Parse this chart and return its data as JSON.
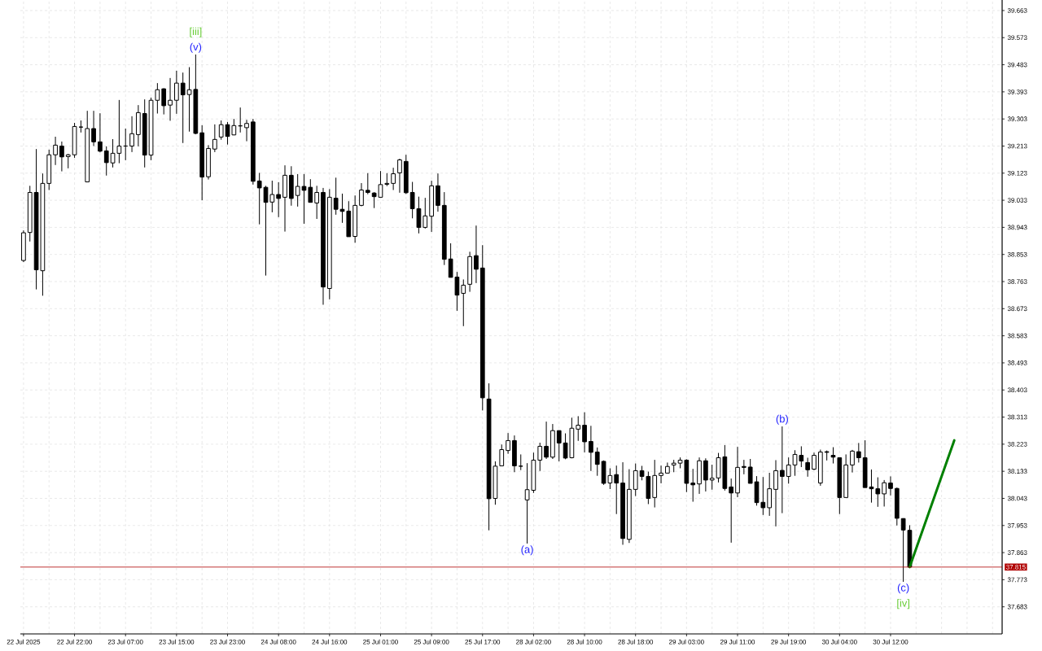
{
  "chart_data": {
    "type": "candlestick",
    "color": "#000000",
    "categories": [
      "22 Jul 2025",
      null,
      null,
      null,
      null,
      null,
      null,
      null,
      "22 Jul 22:00",
      null,
      null,
      null,
      null,
      null,
      null,
      null,
      "23 Jul 07:00",
      null,
      null,
      null,
      null,
      null,
      null,
      null,
      "23 Jul 15:00",
      null,
      null,
      null,
      null,
      null,
      null,
      null,
      "23 Jul 23:00",
      null,
      null,
      null,
      null,
      null,
      null,
      null,
      "24 Jul 08:00",
      null,
      null,
      null,
      null,
      null,
      null,
      null,
      "24 Jul 16:00",
      null,
      null,
      null,
      null,
      null,
      null,
      null,
      "25 Jul 01:00",
      null,
      null,
      null,
      null,
      null,
      null,
      null,
      "25 Jul 09:00",
      null,
      null,
      null,
      null,
      null,
      null,
      null,
      "25 Jul 17:00",
      null,
      null,
      null,
      null,
      null,
      null,
      null,
      "28 Jul 02:00",
      null,
      null,
      null,
      null,
      null,
      null,
      null,
      "28 Jul 10:00",
      null,
      null,
      null,
      null,
      null,
      null,
      null,
      "28 Jul 18:00",
      null,
      null,
      null,
      null,
      null,
      null,
      null,
      "29 Jul 03:00",
      null,
      null,
      null,
      null,
      null,
      null,
      null,
      "29 Jul 11:00",
      null,
      null,
      null,
      null,
      null,
      null,
      null,
      "29 Jul 19:00",
      null,
      null,
      null,
      null,
      null,
      null,
      null,
      "30 Jul 04:00",
      null,
      null,
      null,
      null,
      null,
      null,
      null,
      "30 Jul 12:00",
      null,
      null,
      null,
      null,
      null,
      null,
      null,
      null,
      null,
      null,
      null,
      null,
      null,
      null,
      null,
      null,
      null
    ],
    "ohlc": [
      [
        38.833,
        38.933,
        38.828,
        38.925
      ],
      [
        38.926,
        39.081,
        38.896,
        39.059
      ],
      [
        39.059,
        39.203,
        38.737,
        38.802
      ],
      [
        38.799,
        39.122,
        38.716,
        39.089
      ],
      [
        39.089,
        39.201,
        39.067,
        39.184
      ],
      [
        39.184,
        39.244,
        39.15,
        39.216
      ],
      [
        39.213,
        39.228,
        39.129,
        39.177
      ],
      [
        39.178,
        39.187,
        39.139,
        39.184
      ],
      [
        39.184,
        39.29,
        39.174,
        39.278
      ],
      [
        39.276,
        39.298,
        39.258,
        39.276
      ],
      [
        39.094,
        39.33,
        39.094,
        39.271
      ],
      [
        39.271,
        39.33,
        39.213,
        39.227
      ],
      [
        39.227,
        39.322,
        39.192,
        39.196
      ],
      [
        39.197,
        39.212,
        39.115,
        39.158
      ],
      [
        39.157,
        39.236,
        39.142,
        39.189
      ],
      [
        39.189,
        39.366,
        39.156,
        39.213
      ],
      [
        39.213,
        39.271,
        39.166,
        39.213
      ],
      [
        39.213,
        39.312,
        39.193,
        39.254
      ],
      [
        39.251,
        39.349,
        39.212,
        39.324
      ],
      [
        39.321,
        39.368,
        39.142,
        39.183
      ],
      [
        39.183,
        39.374,
        39.166,
        39.365
      ],
      [
        39.365,
        39.422,
        39.321,
        39.4
      ],
      [
        39.403,
        39.405,
        39.318,
        39.347
      ],
      [
        39.349,
        39.439,
        39.297,
        39.365
      ],
      [
        39.365,
        39.463,
        39.32,
        39.422
      ],
      [
        39.422,
        39.457,
        39.223,
        39.383
      ],
      [
        39.384,
        39.475,
        39.261,
        39.4
      ],
      [
        39.401,
        39.517,
        39.252,
        39.255
      ],
      [
        39.257,
        39.282,
        39.033,
        39.11
      ],
      [
        39.111,
        39.216,
        39.102,
        39.205
      ],
      [
        39.203,
        39.285,
        39.193,
        39.235
      ],
      [
        39.243,
        39.298,
        39.234,
        39.284
      ],
      [
        39.284,
        39.293,
        39.218,
        39.245
      ],
      [
        39.25,
        39.303,
        39.249,
        39.281
      ],
      [
        39.28,
        39.341,
        39.258,
        39.28
      ],
      [
        39.274,
        39.3,
        39.229,
        39.288
      ],
      [
        39.293,
        39.303,
        39.085,
        39.096
      ],
      [
        39.097,
        39.124,
        38.953,
        39.074
      ],
      [
        39.076,
        39.081,
        38.783,
        39.026
      ],
      [
        39.027,
        39.098,
        38.993,
        39.052
      ],
      [
        39.052,
        39.093,
        38.977,
        39.039
      ],
      [
        39.043,
        39.149,
        38.929,
        39.116
      ],
      [
        39.116,
        39.146,
        39.015,
        39.039
      ],
      [
        39.049,
        39.12,
        39.012,
        39.079
      ],
      [
        39.079,
        39.12,
        38.955,
        39.066
      ],
      [
        39.076,
        39.103,
        39.026,
        39.026
      ],
      [
        39.024,
        39.081,
        38.971,
        39.059
      ],
      [
        39.059,
        39.074,
        38.686,
        38.745
      ],
      [
        38.74,
        39.07,
        38.704,
        39.043
      ],
      [
        39.04,
        39.108,
        38.985,
        39.003
      ],
      [
        39.003,
        39.055,
        38.958,
        38.996
      ],
      [
        38.997,
        39.03,
        38.912,
        38.912
      ],
      [
        38.913,
        39.049,
        38.892,
        39.016
      ],
      [
        39.016,
        39.09,
        39.013,
        39.067
      ],
      [
        39.066,
        39.123,
        39.053,
        39.059
      ],
      [
        39.057,
        39.06,
        39.007,
        39.045
      ],
      [
        39.043,
        39.13,
        39.043,
        39.085
      ],
      [
        39.086,
        39.123,
        39.08,
        39.089
      ],
      [
        39.089,
        39.141,
        39.067,
        39.121
      ],
      [
        39.124,
        39.171,
        39.058,
        39.167
      ],
      [
        39.162,
        39.184,
        39.054,
        39.058
      ],
      [
        39.059,
        39.094,
        38.973,
        39.005
      ],
      [
        39.005,
        39.045,
        38.923,
        38.943
      ],
      [
        38.943,
        39.041,
        38.939,
        38.981
      ],
      [
        38.98,
        39.098,
        38.928,
        39.081
      ],
      [
        39.081,
        39.122,
        38.995,
        39.016
      ],
      [
        39.016,
        39.06,
        38.818,
        38.837
      ],
      [
        38.838,
        38.89,
        38.777,
        38.777
      ],
      [
        38.778,
        38.795,
        38.666,
        38.718
      ],
      [
        38.724,
        38.77,
        38.615,
        38.751
      ],
      [
        38.754,
        38.862,
        38.729,
        38.846
      ],
      [
        38.849,
        38.949,
        38.758,
        38.804
      ],
      [
        38.808,
        38.884,
        38.335,
        38.377
      ],
      [
        38.373,
        38.425,
        37.937,
        38.042
      ],
      [
        38.043,
        38.166,
        38.022,
        38.15
      ],
      [
        38.151,
        38.222,
        38.151,
        38.205
      ],
      [
        38.202,
        38.26,
        38.191,
        38.235
      ],
      [
        38.235,
        38.252,
        38.13,
        38.151
      ],
      [
        38.15,
        38.189,
        38.137,
        38.15
      ],
      [
        38.038,
        38.16,
        37.893,
        38.072
      ],
      [
        38.07,
        38.195,
        38.061,
        38.17
      ],
      [
        38.17,
        38.228,
        38.134,
        38.216
      ],
      [
        38.216,
        38.298,
        38.174,
        38.18
      ],
      [
        38.18,
        38.29,
        38.174,
        38.268
      ],
      [
        38.268,
        38.269,
        38.166,
        38.227
      ],
      [
        38.227,
        38.259,
        38.173,
        38.177
      ],
      [
        38.178,
        38.311,
        38.176,
        38.276
      ],
      [
        38.273,
        38.316,
        38.234,
        38.286
      ],
      [
        38.286,
        38.329,
        38.196,
        38.231
      ],
      [
        38.232,
        38.284,
        38.134,
        38.196
      ],
      [
        38.197,
        38.212,
        38.118,
        38.156
      ],
      [
        38.166,
        38.169,
        38.088,
        38.093
      ],
      [
        38.094,
        38.143,
        38.074,
        38.119
      ],
      [
        38.122,
        38.152,
        37.991,
        38.094
      ],
      [
        38.094,
        38.163,
        37.889,
        37.91
      ],
      [
        37.907,
        38.14,
        37.895,
        38.073
      ],
      [
        38.073,
        38.159,
        38.051,
        38.135
      ],
      [
        38.135,
        38.151,
        38.103,
        38.116
      ],
      [
        38.116,
        38.132,
        38.024,
        38.043
      ],
      [
        38.046,
        38.171,
        38.013,
        38.119
      ],
      [
        38.119,
        38.152,
        38.093,
        38.127
      ],
      [
        38.127,
        38.162,
        38.127,
        38.149
      ],
      [
        38.154,
        38.171,
        38.13,
        38.16
      ],
      [
        38.16,
        38.179,
        38.143,
        38.17
      ],
      [
        38.17,
        38.173,
        38.064,
        38.093
      ],
      [
        38.094,
        38.141,
        38.032,
        38.088
      ],
      [
        38.091,
        38.179,
        38.058,
        38.168
      ],
      [
        38.168,
        38.176,
        38.066,
        38.104
      ],
      [
        38.104,
        38.155,
        38.072,
        38.11
      ],
      [
        38.111,
        38.194,
        38.096,
        38.178
      ],
      [
        38.181,
        38.22,
        38.069,
        38.076
      ],
      [
        38.081,
        38.109,
        37.896,
        38.061
      ],
      [
        38.061,
        38.214,
        38.047,
        38.146
      ],
      [
        38.149,
        38.171,
        38.123,
        38.146
      ],
      [
        38.147,
        38.174,
        38.093,
        38.093
      ],
      [
        38.098,
        38.117,
        38.019,
        38.029
      ],
      [
        38.03,
        38.114,
        37.988,
        38.012
      ],
      [
        38.012,
        38.128,
        37.985,
        38.075
      ],
      [
        38.073,
        38.17,
        37.95,
        38.135
      ],
      [
        38.136,
        38.282,
        37.994,
        38.116
      ],
      [
        38.116,
        38.179,
        38.092,
        38.154
      ],
      [
        38.154,
        38.203,
        38.118,
        38.189
      ],
      [
        38.186,
        38.216,
        38.147,
        38.167
      ],
      [
        38.162,
        38.178,
        38.115,
        38.138
      ],
      [
        38.14,
        38.195,
        38.137,
        38.186
      ],
      [
        38.094,
        38.205,
        38.085,
        38.197
      ],
      [
        38.198,
        38.202,
        38.169,
        38.196
      ],
      [
        38.186,
        38.213,
        38.159,
        38.18
      ],
      [
        38.178,
        38.178,
        37.991,
        38.046
      ],
      [
        38.046,
        38.189,
        38.046,
        38.154
      ],
      [
        38.154,
        38.204,
        38.129,
        38.2
      ],
      [
        38.198,
        38.227,
        38.162,
        38.178
      ],
      [
        38.178,
        38.236,
        38.079,
        38.079
      ],
      [
        38.081,
        38.139,
        38.029,
        38.075
      ],
      [
        38.075,
        38.113,
        38.015,
        38.058
      ],
      [
        38.058,
        38.104,
        38.016,
        38.095
      ],
      [
        38.094,
        38.116,
        38.053,
        38.076
      ],
      [
        38.076,
        38.079,
        37.953,
        37.977
      ],
      [
        37.976,
        37.977,
        37.766,
        37.938
      ],
      [
        37.937,
        37.954,
        37.815,
        37.815
      ],
      null,
      null,
      null,
      null,
      null,
      null,
      null,
      null,
      null,
      null,
      null,
      null,
      null,
      null
    ],
    "series": [
      {
        "type": "line",
        "color": "#008000",
        "values": [
          null,
          null,
          null,
          null,
          null,
          null,
          null,
          null,
          null,
          null,
          null,
          null,
          null,
          null,
          null,
          null,
          null,
          null,
          null,
          null,
          null,
          null,
          null,
          null,
          null,
          null,
          null,
          null,
          null,
          null,
          null,
          null,
          null,
          null,
          null,
          null,
          null,
          null,
          null,
          null,
          null,
          null,
          null,
          null,
          null,
          null,
          null,
          null,
          null,
          null,
          null,
          null,
          null,
          null,
          null,
          null,
          null,
          null,
          null,
          null,
          null,
          null,
          null,
          null,
          null,
          null,
          null,
          null,
          null,
          null,
          null,
          null,
          null,
          null,
          null,
          null,
          null,
          null,
          null,
          null,
          null,
          null,
          null,
          null,
          null,
          null,
          null,
          null,
          null,
          null,
          null,
          null,
          null,
          null,
          null,
          null,
          null,
          null,
          null,
          null,
          null,
          null,
          null,
          null,
          null,
          null,
          null,
          null,
          null,
          null,
          null,
          null,
          null,
          null,
          null,
          null,
          null,
          null,
          null,
          null,
          null,
          null,
          null,
          null,
          null,
          null,
          null,
          null,
          null,
          null,
          null,
          null,
          null,
          null,
          null,
          null,
          null,
          null,
          null,
          37.815,
          null,
          null,
          null,
          null,
          null,
          null,
          38.236,
          null,
          null,
          null,
          null,
          null,
          null,
          null
        ]
      }
    ],
    "ylim": [
      37.593,
      39.698
    ],
    "yticks": [
      37.683,
      37.773,
      37.863,
      37.953,
      38.043,
      38.133,
      38.223,
      38.313,
      38.403,
      38.493,
      38.583,
      38.673,
      38.763,
      38.853,
      38.943,
      39.033,
      39.123,
      39.213,
      39.303,
      39.393,
      39.483,
      39.573,
      39.663
    ],
    "grid": true,
    "ref_lines": [
      {
        "axis": "y",
        "value": 37.815,
        "label": "37.815",
        "color": "#b00000"
      }
    ],
    "annotations": [
      "[iii]",
      "(v)",
      "(a)",
      "(b)",
      "(c)",
      "[iv]"
    ]
  }
}
